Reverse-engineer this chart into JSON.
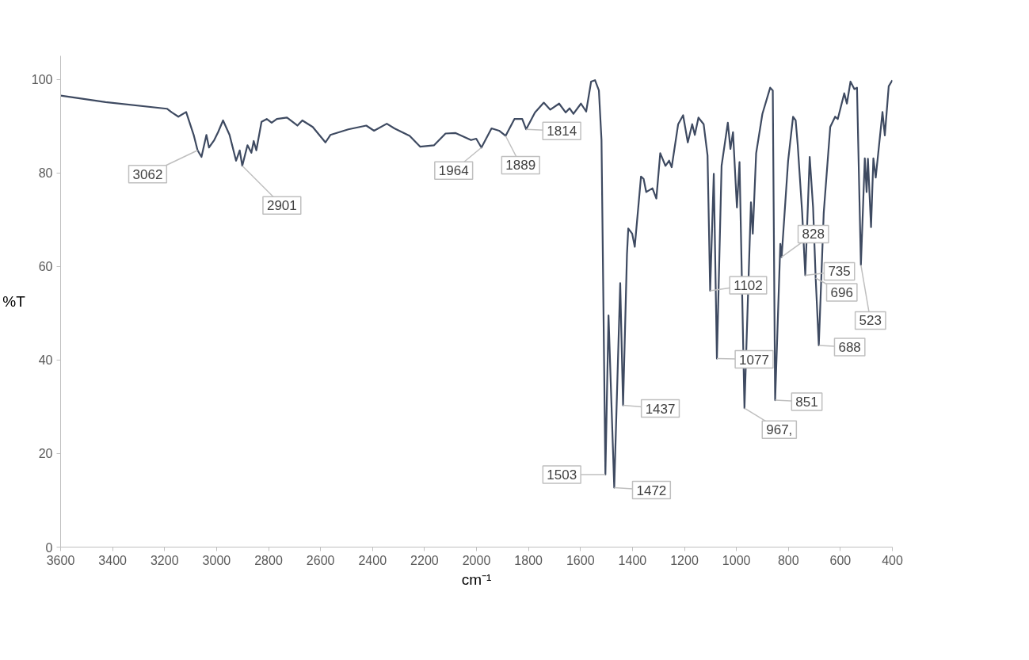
{
  "chart_data": {
    "type": "line",
    "xlabel": "cm⁻¹",
    "ylabel": "%T",
    "xlim": [
      3600,
      400
    ],
    "ylim": [
      0,
      105
    ],
    "xticks": [
      3600,
      3400,
      3200,
      3000,
      2800,
      2600,
      2400,
      2200,
      2000,
      1800,
      1600,
      1400,
      1200,
      1000,
      800,
      600,
      400
    ],
    "yticks": [
      0,
      20,
      40,
      60,
      80,
      100
    ],
    "grid": false,
    "marker": "none",
    "line_style": "solid",
    "series": [
      {
        "color": "#3e4a61",
        "x": [
          3600,
          3427,
          3191,
          3172,
          3147,
          3117,
          3088,
          3073,
          3058,
          3039,
          3029,
          3009,
          2994,
          2975,
          2950,
          2925,
          2911,
          2901,
          2881,
          2866,
          2857,
          2847,
          2827,
          2807,
          2788,
          2768,
          2729,
          2689,
          2670,
          2630,
          2581,
          2562,
          2493,
          2424,
          2394,
          2345,
          2316,
          2257,
          2217,
          2163,
          2119,
          2080,
          2021,
          2001,
          1981,
          1942,
          1913,
          1888,
          1854,
          1824,
          1809,
          1775,
          1741,
          1716,
          1682,
          1657,
          1642,
          1627,
          1598,
          1578,
          1559,
          1544,
          1529,
          1519,
          1504,
          1492,
          1470,
          1447,
          1436,
          1421,
          1416,
          1401,
          1391,
          1367,
          1357,
          1347,
          1323,
          1308,
          1293,
          1273,
          1259,
          1249,
          1224,
          1205,
          1187,
          1170,
          1160,
          1146,
          1126,
          1111,
          1101,
          1087,
          1075,
          1057,
          1033,
          1023,
          1013,
          998,
          988,
          969,
          944,
          937,
          924,
          900,
          870,
          860,
          851,
          831,
          826,
          801,
          782,
          772,
          764,
          747,
          735,
          718,
          705,
          695,
          683,
          664,
          639,
          620,
          610,
          585,
          575,
          561,
          546,
          536,
          521,
          506,
          499,
          494,
          482,
          473,
          464,
          438,
          429,
          414,
          400
        ],
        "values": [
          96.5,
          95.1,
          93.7,
          92.9,
          92.0,
          93.0,
          88.1,
          84.8,
          83.4,
          88.1,
          85.4,
          87.0,
          88.7,
          91.2,
          88.1,
          82.6,
          84.8,
          81.5,
          85.9,
          84.3,
          86.8,
          84.8,
          90.9,
          91.5,
          90.7,
          91.5,
          91.8,
          90.1,
          91.2,
          89.8,
          86.5,
          88.1,
          89.3,
          90.1,
          89.0,
          90.5,
          89.5,
          87.9,
          85.6,
          85.9,
          88.4,
          88.5,
          87.0,
          87.3,
          85.4,
          89.5,
          89.0,
          87.9,
          91.5,
          91.5,
          89.3,
          92.9,
          95.0,
          93.5,
          94.8,
          92.9,
          93.8,
          92.6,
          94.8,
          93.1,
          99.5,
          99.8,
          97.6,
          87.0,
          15.5,
          49.5,
          12.7,
          56.4,
          30.3,
          62.6,
          68.1,
          67.0,
          64.2,
          79.2,
          78.7,
          75.9,
          76.7,
          74.5,
          84.2,
          81.5,
          82.6,
          81.2,
          90.4,
          92.3,
          86.5,
          90.4,
          88.1,
          91.8,
          90.4,
          83.7,
          54.8,
          79.8,
          40.3,
          81.5,
          90.7,
          85.1,
          88.7,
          72.6,
          82.3,
          29.7,
          73.7,
          67.0,
          84.2,
          92.6,
          98.2,
          97.6,
          31.4,
          64.8,
          62.0,
          82.6,
          92.0,
          91.2,
          85.9,
          71.5,
          58.1,
          83.4,
          72.6,
          57.5,
          43.1,
          71.5,
          89.8,
          92.0,
          91.5,
          97.0,
          94.8,
          99.5,
          97.9,
          98.2,
          60.3,
          83.1,
          75.9,
          83.0,
          68.4,
          83.1,
          79.0,
          93.0,
          88.0,
          98.5,
          99.8
        ]
      }
    ],
    "annotations": [
      {
        "text": "3062",
        "x": 3073,
        "y": 84.8
      },
      {
        "text": "2901",
        "x": 2901,
        "y": 81.5
      },
      {
        "text": "1964",
        "x": 1981,
        "y": 85.4
      },
      {
        "text": "1889",
        "x": 1888,
        "y": 87.9
      },
      {
        "text": "1814",
        "x": 1809,
        "y": 89.3
      },
      {
        "text": "1503",
        "x": 1504,
        "y": 15.5
      },
      {
        "text": "1472",
        "x": 1470,
        "y": 12.7
      },
      {
        "text": "1437",
        "x": 1436,
        "y": 30.3
      },
      {
        "text": "1102",
        "x": 1101,
        "y": 54.8
      },
      {
        "text": "1077",
        "x": 1075,
        "y": 40.3
      },
      {
        "text": "967,",
        "x": 969,
        "y": 29.7
      },
      {
        "text": "851",
        "x": 851,
        "y": 31.4
      },
      {
        "text": "828",
        "x": 826,
        "y": 62.0
      },
      {
        "text": "735",
        "x": 735,
        "y": 58.1
      },
      {
        "text": "696",
        "x": 695,
        "y": 57.5
      },
      {
        "text": "688",
        "x": 683,
        "y": 43.1
      },
      {
        "text": "523",
        "x": 521,
        "y": 60.3
      }
    ]
  }
}
